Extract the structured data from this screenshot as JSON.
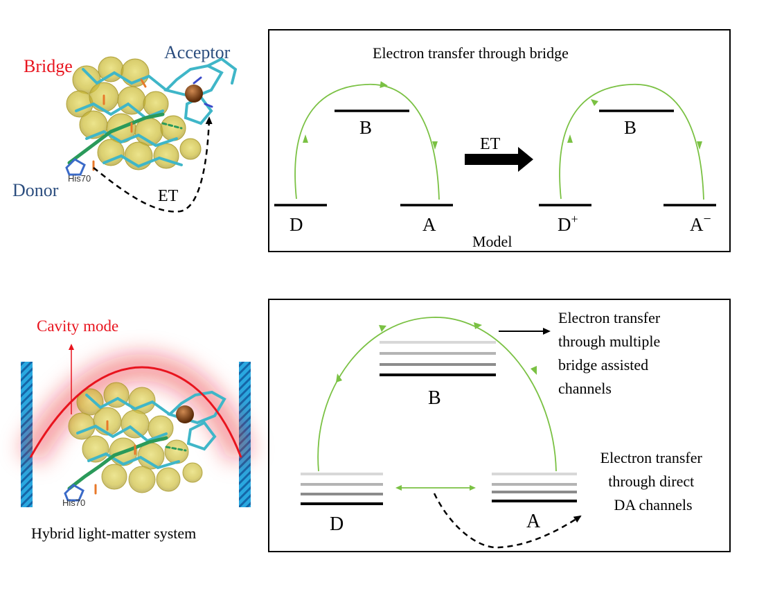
{
  "top": {
    "molecule": {
      "bridge_label": "Bridge",
      "acceptor_label": "Acceptor",
      "donor_label": "Donor",
      "residue_label": "His70",
      "et_label": "ET"
    },
    "model": {
      "title": "Electron transfer through bridge",
      "left": {
        "bridge": "B",
        "donor": "D",
        "acceptor": "A"
      },
      "arrow_label": "ET",
      "right": {
        "bridge": "B",
        "donor": "D",
        "donor_sup": "+",
        "acceptor": "A",
        "acceptor_sup": "−"
      },
      "caption": "Model"
    }
  },
  "bottom": {
    "molecule": {
      "cavity_label": "Cavity mode",
      "residue_label": "His70",
      "caption": "Hybrid light-matter system"
    },
    "model": {
      "bridge": "B",
      "donor": "D",
      "acceptor": "A",
      "bridge_note": [
        "Electron transfer",
        "through multiple",
        "bridge assisted",
        "channels"
      ],
      "direct_note": [
        "Electron transfer",
        "through direct",
        "DA channels"
      ]
    }
  },
  "colors": {
    "label_red": "#e8141e",
    "label_blue": "#2b4d7e",
    "path_green": "#7ac143",
    "level_black": "#000000",
    "mirror_blue": "#29a8e0",
    "stick_cyan": "#3fb6c8",
    "stick_green": "#2a9a5a",
    "blob_yellow": "#c9b82a",
    "iron_brown": "#8a4a1c"
  }
}
